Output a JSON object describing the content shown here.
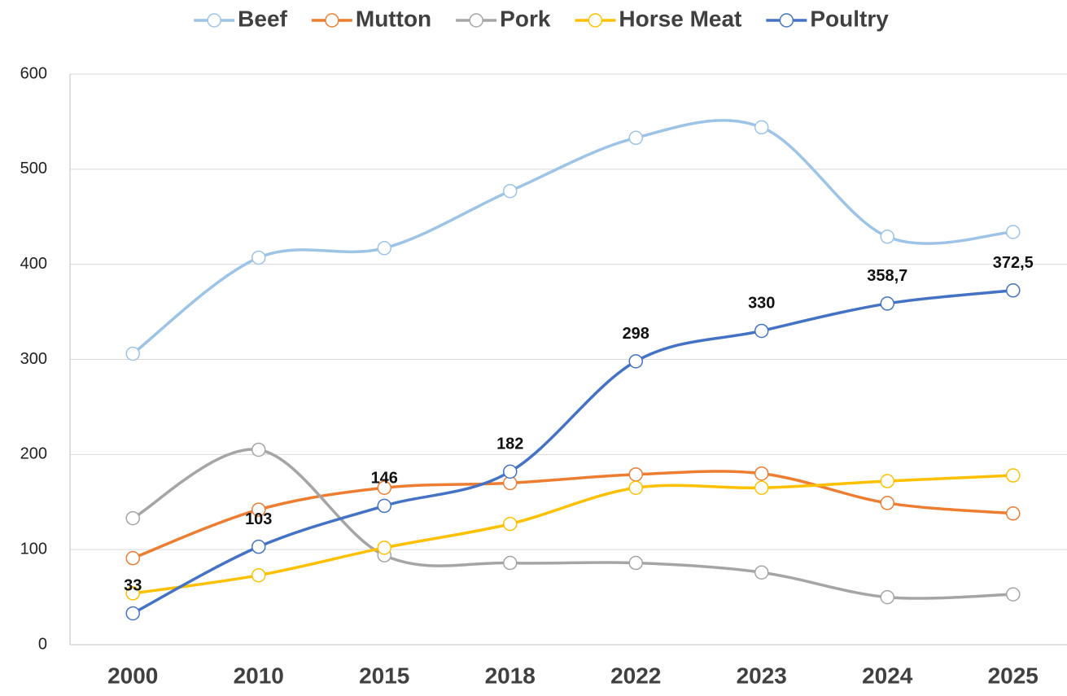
{
  "chart_data": {
    "type": "line",
    "categories": [
      "2000",
      "2010",
      "2015",
      "2018",
      "2022",
      "2023",
      "2024",
      "2025"
    ],
    "series": [
      {
        "name": "Beef",
        "color": "#9dc3e6",
        "values": [
          306,
          407,
          417,
          477,
          533,
          544,
          429,
          434
        ]
      },
      {
        "name": "Mutton",
        "color": "#ed7d31",
        "values": [
          91,
          142,
          165,
          170,
          179,
          180,
          149,
          138
        ]
      },
      {
        "name": "Pork",
        "color": "#a5a5a5",
        "values": [
          133,
          205,
          94,
          86,
          86,
          76,
          50,
          53
        ]
      },
      {
        "name": "Horse Meat",
        "color": "#ffc000",
        "values": [
          54,
          73,
          102,
          127,
          165,
          165,
          172,
          178
        ]
      },
      {
        "name": "Poultry",
        "color": "#4472c4",
        "values": [
          33,
          103,
          146,
          182,
          298,
          330,
          358.7,
          372.5
        ],
        "value_labels": [
          "33",
          "103",
          "146",
          "182",
          "298",
          "330",
          "358,7",
          "372,5"
        ]
      }
    ],
    "ylim": [
      0,
      600
    ],
    "yticks": [
      0,
      100,
      200,
      300,
      400,
      500,
      600
    ],
    "grid": true,
    "smooth": true,
    "legend": "top"
  }
}
